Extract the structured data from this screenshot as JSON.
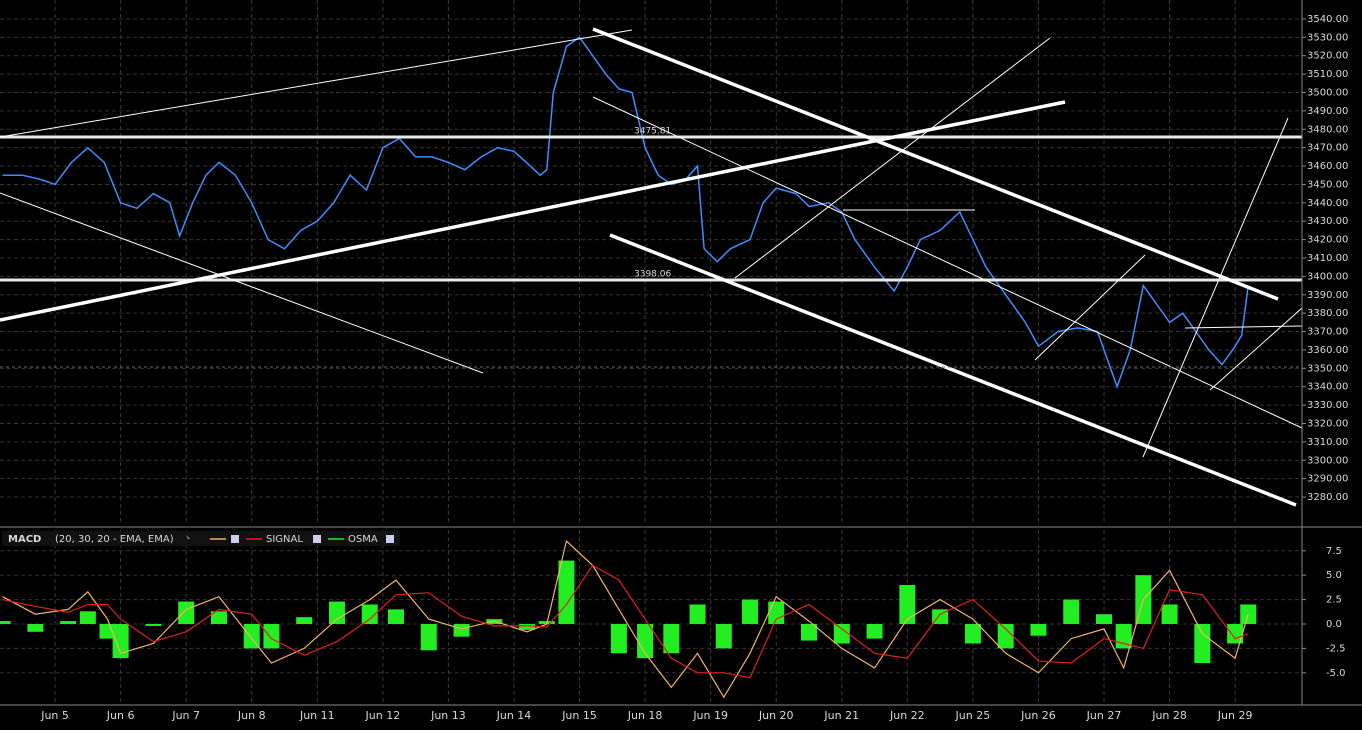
{
  "chart_data": [
    {
      "type": "line",
      "x": [
        -0.8,
        -0.5,
        -0.25,
        0,
        0.25,
        0.5,
        0.75,
        1,
        1.25,
        1.5,
        1.75,
        1.9,
        2.1,
        2.3,
        2.5,
        2.75,
        3,
        3.25,
        3.5,
        3.75,
        4,
        4.25,
        4.5,
        4.75,
        5,
        5.25,
        5.5,
        5.75,
        6,
        6.25,
        6.5,
        6.75,
        7,
        7.25,
        7.4,
        7.5,
        7.6,
        7.8,
        8,
        8.2,
        8.4,
        8.6,
        8.8,
        9,
        9.2,
        9.4,
        9.6,
        9.8,
        9.9,
        10.1,
        10.3,
        10.6,
        10.8,
        11,
        11.3,
        11.5,
        11.8,
        12,
        12.2,
        12.5,
        12.8,
        13,
        13.2,
        13.5,
        13.8,
        14,
        14.2,
        14.5,
        14.8,
        15,
        15.3,
        15.6,
        15.9,
        16,
        16.2,
        16.4,
        16.6,
        16.8,
        17,
        17.2,
        17.4,
        17.6,
        17.8,
        18,
        18.1,
        18.2
      ],
      "series": [
        {
          "color": "#3d8eff",
          "values": [
            3455,
            3455,
            3453,
            3450,
            3462,
            3470,
            3462,
            3440,
            3437,
            3445,
            3440,
            3422,
            3440,
            3455,
            3462,
            3455,
            3440,
            3420,
            3415,
            3425,
            3430,
            3440,
            3455,
            3447,
            3470,
            3475,
            3465,
            3465,
            3462,
            3458,
            3465,
            3470,
            3468,
            3460,
            3455,
            3458,
            3500,
            3525,
            3530,
            3520,
            3510,
            3502,
            3500,
            3470,
            3455,
            3450,
            3452,
            3460,
            3415,
            3408,
            3415,
            3420,
            3440,
            3448,
            3445,
            3438,
            3440,
            3435,
            3420,
            3405,
            3392,
            3405,
            3420,
            3425,
            3435,
            3420,
            3405,
            3390,
            3375,
            3362,
            3370,
            3372,
            3370,
            3360,
            3340,
            3360,
            3395,
            3385,
            3375,
            3380,
            3370,
            3360,
            3352,
            3362,
            3368,
            3395
          ]
        }
      ],
      "hlines": [
        3475.81,
        3398.06
      ],
      "xlim": [
        -0.84,
        19.02
      ],
      "xticks": [
        {
          "value": 0,
          "label": "Jun 5"
        },
        {
          "value": 1,
          "label": "Jun 6"
        },
        {
          "value": 2,
          "label": "Jun 7"
        },
        {
          "value": 3,
          "label": "Jun 8"
        },
        {
          "value": 4,
          "label": "Jun 11"
        },
        {
          "value": 5,
          "label": "Jun 12"
        },
        {
          "value": 6,
          "label": "Jun 13"
        },
        {
          "value": 7,
          "label": "Jun 14"
        },
        {
          "value": 8,
          "label": "Jun 15"
        },
        {
          "value": 9,
          "label": "Jun 18"
        },
        {
          "value": 10,
          "label": "Jun 19"
        },
        {
          "value": 11,
          "label": "Jun 20"
        },
        {
          "value": 12,
          "label": "Jun 21"
        },
        {
          "value": 13,
          "label": "Jun 22"
        },
        {
          "value": 14,
          "label": "Jun 25"
        },
        {
          "value": 15,
          "label": "Jun 26"
        },
        {
          "value": 16,
          "label": "Jun 27"
        },
        {
          "value": 17,
          "label": "Jun 28"
        },
        {
          "value": 18,
          "label": "Jun 29"
        }
      ],
      "ylim": [
        3264.8,
        3550.3
      ],
      "yticks": [
        {
          "value": 3540,
          "label": "3540.00"
        },
        {
          "value": 3530,
          "label": "3530.00"
        },
        {
          "value": 3520,
          "label": "3520.00"
        },
        {
          "value": 3510,
          "label": "3510.00"
        },
        {
          "value": 3500,
          "label": "3500.00"
        },
        {
          "value": 3490,
          "label": "3490.00"
        },
        {
          "value": 3480,
          "label": "3480.00"
        },
        {
          "value": 3470,
          "label": "3470.00"
        },
        {
          "value": 3460,
          "label": "3460.00"
        },
        {
          "value": 3450,
          "label": "3450.00"
        },
        {
          "value": 3440,
          "label": "3440.00"
        },
        {
          "value": 3430,
          "label": "3430.00"
        },
        {
          "value": 3420,
          "label": "3420.00"
        },
        {
          "value": 3410,
          "label": "3410.00"
        },
        {
          "value": 3400,
          "label": "3400.00"
        },
        {
          "value": 3390,
          "label": "3390.00"
        },
        {
          "value": 3380,
          "label": "3380.00"
        },
        {
          "value": 3370,
          "label": "3370.00"
        },
        {
          "value": 3360,
          "label": "3360.00"
        },
        {
          "value": 3350,
          "label": "3350.00"
        },
        {
          "value": 3340,
          "label": "3340.00"
        },
        {
          "value": 3330,
          "label": "3330.00"
        },
        {
          "value": 3320,
          "label": "3320.00"
        },
        {
          "value": 3310,
          "label": "3310.00"
        },
        {
          "value": 3300,
          "label": "3300.00"
        },
        {
          "value": 3290,
          "label": "3290.00"
        },
        {
          "value": 3280,
          "label": "3280.00"
        }
      ],
      "grid": true
    },
    {
      "type": "macd",
      "title": "MACD",
      "subtitle": "(20, 30, 20 - EMA, EMA)",
      "x": [
        -0.8,
        -0.3,
        0.2,
        0.5,
        0.8,
        1.0,
        1.5,
        2.0,
        2.5,
        3.0,
        3.3,
        3.8,
        4.3,
        4.8,
        5.2,
        5.7,
        6.2,
        6.7,
        7.2,
        7.5,
        7.8,
        8.2,
        8.6,
        9.0,
        9.4,
        9.8,
        10.2,
        10.6,
        11.0,
        11.5,
        12.0,
        12.5,
        13.0,
        13.5,
        14.0,
        14.5,
        15.0,
        15.5,
        16.0,
        16.3,
        16.6,
        17.0,
        17.5,
        18.0,
        18.2
      ],
      "series": [
        {
          "color": "#f3b35f",
          "values": [
            2.8,
            1.0,
            1.5,
            3.3,
            0.5,
            -3,
            -2,
            1.5,
            2.8,
            -1.5,
            -4,
            -2.5,
            0.5,
            2.5,
            4.5,
            0.5,
            -0.5,
            0.3,
            -0.8,
            0,
            8.5,
            6,
            1.5,
            -3,
            -6.5,
            -3,
            -7.5,
            -3,
            2.8,
            0.3,
            -2.5,
            -4.5,
            0.5,
            2.5,
            0.5,
            -3,
            -5,
            -1.5,
            -0.5,
            -4.5,
            2.5,
            5.5,
            -1,
            -3.5,
            1
          ]
        },
        {
          "name": "SIGNAL",
          "color": "#e02020",
          "values": [
            2.5,
            1.8,
            1.2,
            2.0,
            2.0,
            0.5,
            -1.8,
            -0.8,
            1.5,
            1.0,
            -1.5,
            -3.2,
            -1.8,
            0.5,
            3.0,
            3.2,
            0.8,
            -0.2,
            -0.2,
            -0.3,
            2.0,
            6.0,
            4.5,
            0.5,
            -3.5,
            -5.0,
            -5.0,
            -5.5,
            0.5,
            2.0,
            -0.5,
            -3.0,
            -3.5,
            1.0,
            2.5,
            -0.5,
            -3.8,
            -4.0,
            -1.5,
            -2.0,
            -2.5,
            3.5,
            3.0,
            -1.5,
            -1.0
          ]
        },
        {
          "name": "OSMA",
          "color": "#22ee22",
          "style": "histogram",
          "values": [
            0.3,
            -0.8,
            0.3,
            1.3,
            -1.5,
            -3.5,
            -0.2,
            2.3,
            1.3,
            -2.5,
            -2.5,
            0.7,
            2.3,
            2.0,
            1.5,
            -2.7,
            -1.3,
            0.5,
            -0.6,
            0.3,
            6.5,
            0,
            -3,
            -3.5,
            -3,
            2,
            -2.5,
            2.5,
            2.3,
            -1.7,
            -2,
            -1.5,
            4,
            1.5,
            -2,
            -2.5,
            -1.2,
            2.5,
            1.0,
            -2.5,
            5.0,
            2.0,
            -4.0,
            -2.0,
            2.0
          ]
        }
      ],
      "ylim": [
        -8.3,
        9.63
      ],
      "yticks": [
        {
          "value": 7.5,
          "label": "7.5"
        },
        {
          "value": 5,
          "label": "5.0"
        },
        {
          "value": 2.5,
          "label": "2.5"
        },
        {
          "value": 0,
          "label": "0.0"
        },
        {
          "value": -2.5,
          "label": "-2.5"
        },
        {
          "value": -5,
          "label": "-5.0"
        }
      ],
      "grid": true
    }
  ]
}
